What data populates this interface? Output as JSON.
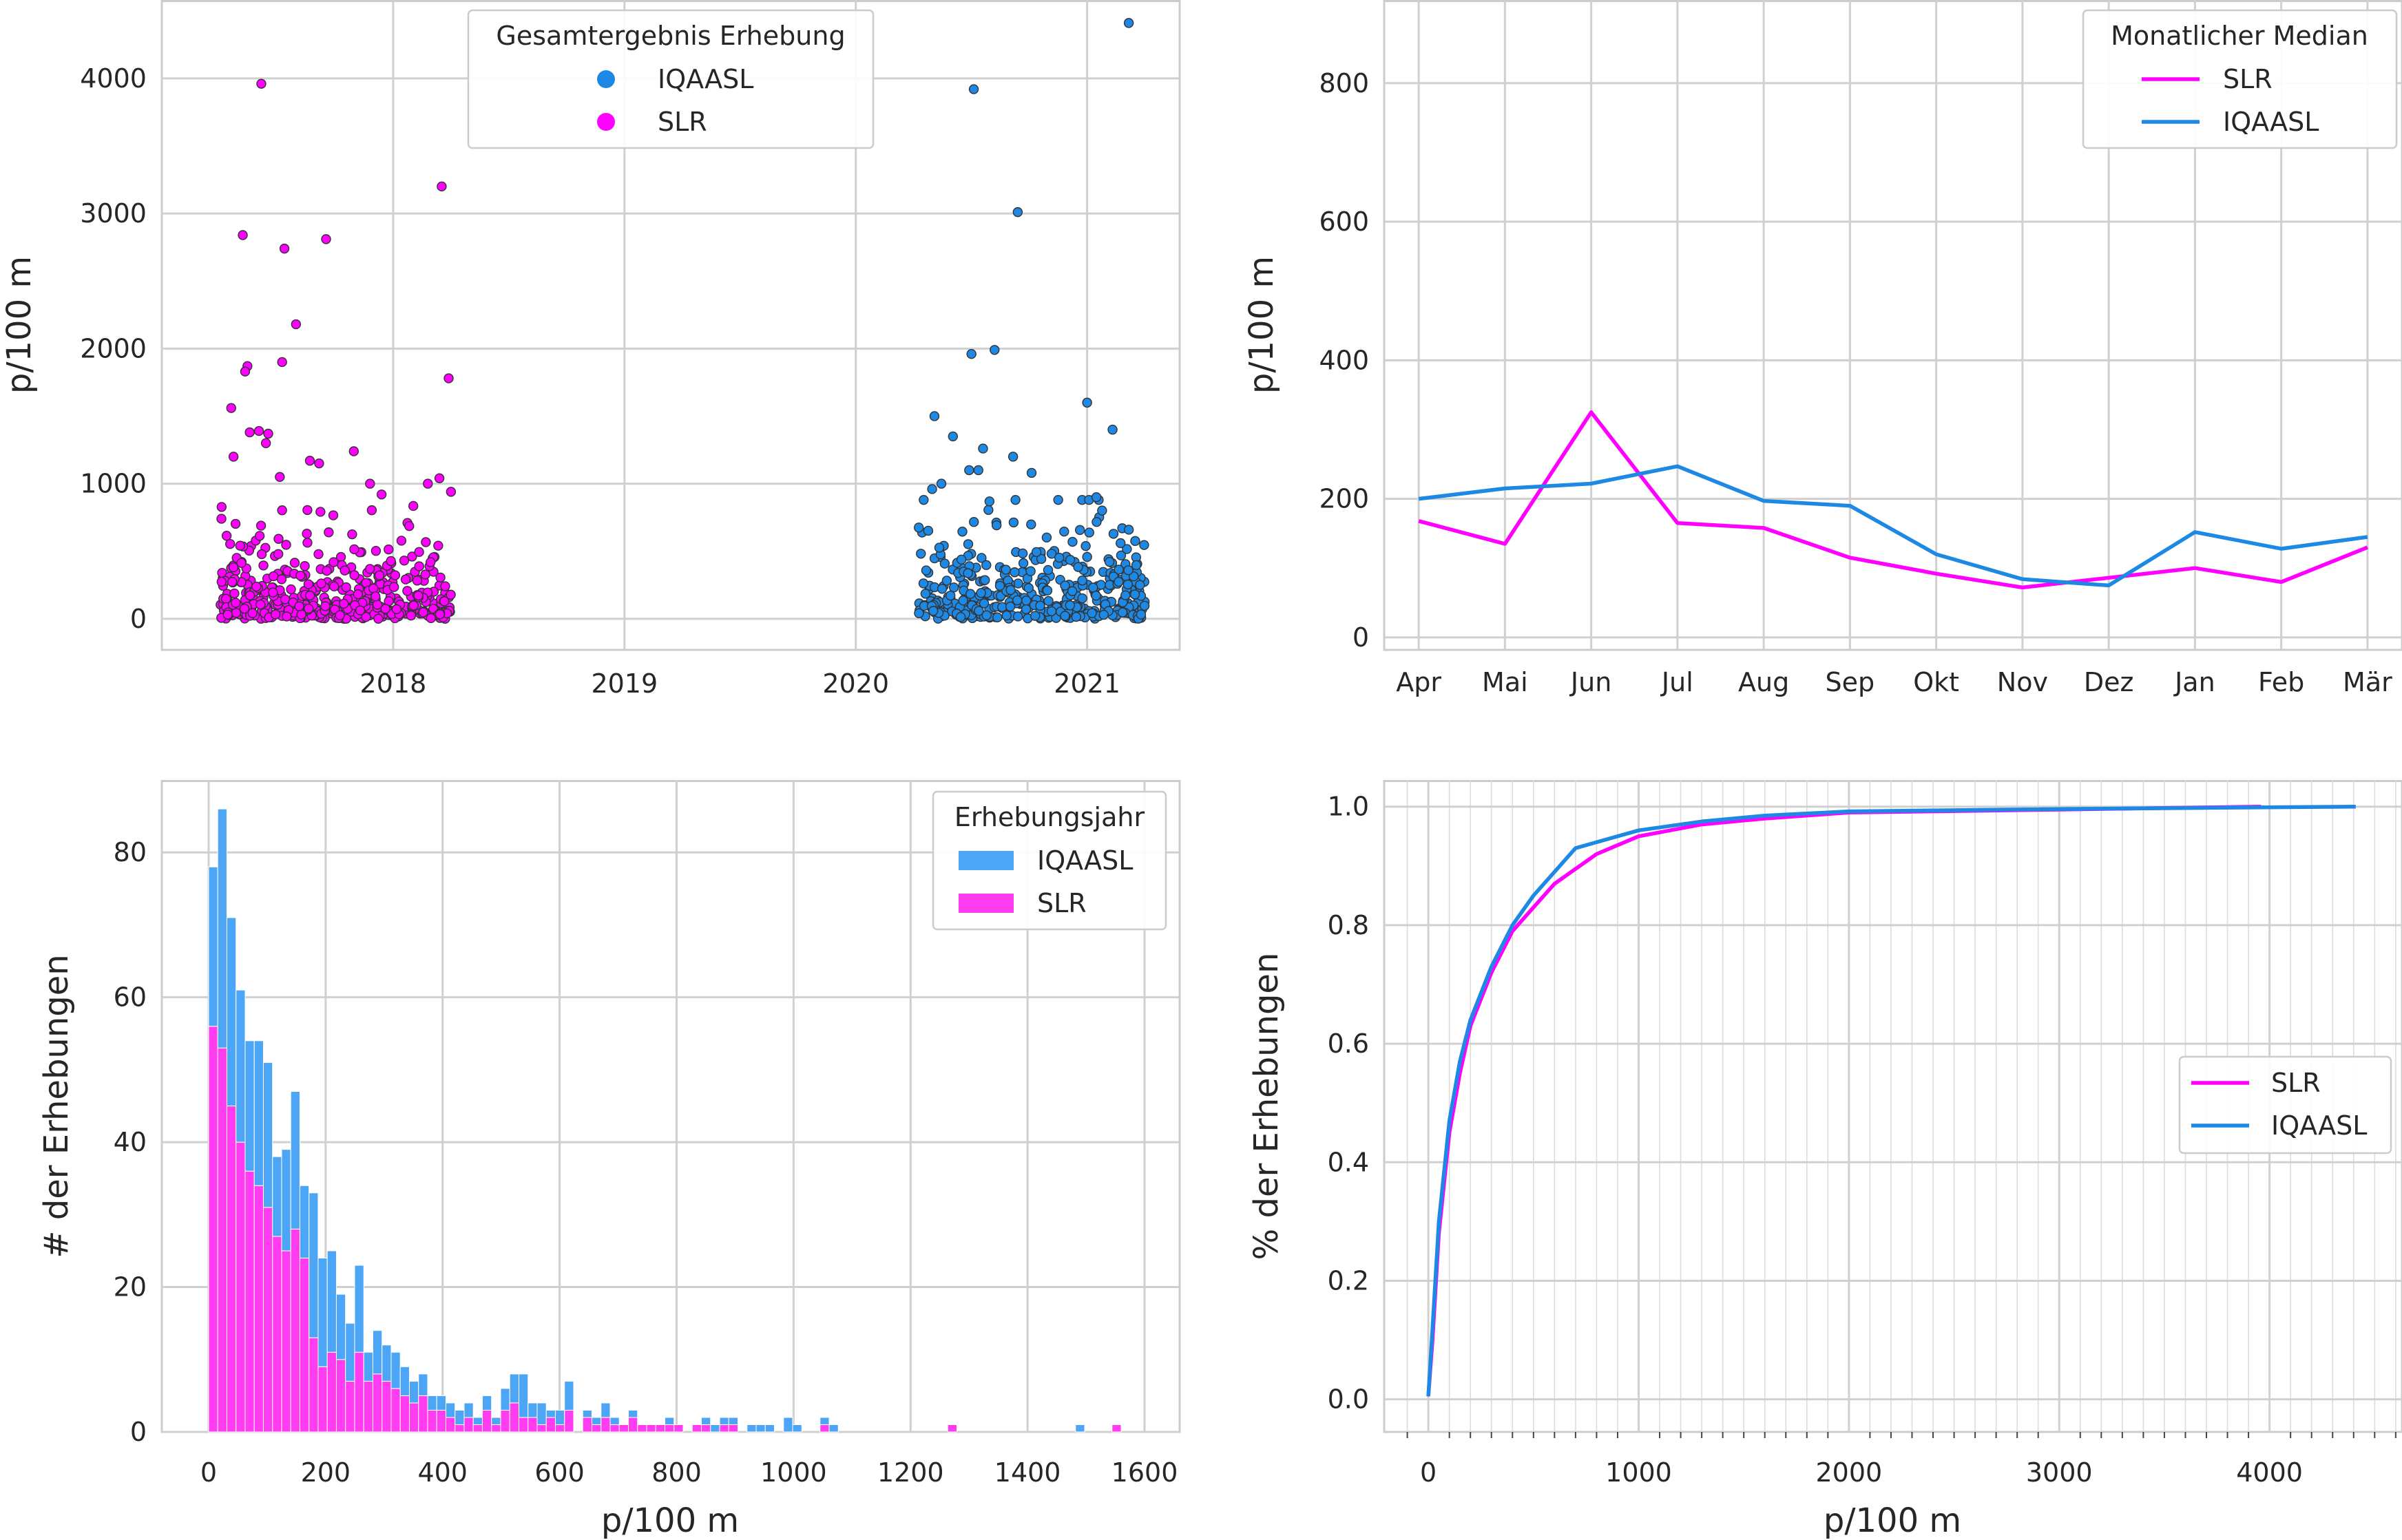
{
  "colors": {
    "slr": "#ff00ff",
    "iqaasl": "#1e88e5",
    "iqaasl_bar": "#4da6f5",
    "slr_bar": "#ff3cf0"
  },
  "chart_data": [
    {
      "id": "scatter",
      "type": "scatter",
      "ylabel": "p/100 m",
      "xlim": [
        2017.0,
        2021.4
      ],
      "ylim": [
        -230,
        4580
      ],
      "yticks": [
        0,
        1000,
        2000,
        3000,
        4000
      ],
      "xticks": [
        2018,
        2019,
        2020,
        2021
      ],
      "legend": {
        "title": "Gesamtergebnis Erhebung",
        "placement": "top-center",
        "entries": [
          "IQAASL",
          "SLR"
        ]
      },
      "series": [
        {
          "name": "SLR",
          "color": "#ff00ff",
          "outliers": [
            [
              2017.43,
              3960
            ],
            [
              2017.35,
              2840
            ],
            [
              2017.53,
              2740
            ],
            [
              2017.71,
              2810
            ],
            [
              2018.21,
              3200
            ],
            [
              2017.58,
              2180
            ],
            [
              2017.52,
              1900
            ],
            [
              2017.37,
              1870
            ],
            [
              2017.36,
              1830
            ],
            [
              2018.24,
              1780
            ],
            [
              2017.3,
              1560
            ],
            [
              2017.38,
              1380
            ],
            [
              2017.42,
              1390
            ],
            [
              2017.45,
              1300
            ],
            [
              2017.46,
              1370
            ],
            [
              2017.31,
              1200
            ],
            [
              2017.64,
              1170
            ],
            [
              2017.83,
              1240
            ],
            [
              2017.68,
              1150
            ],
            [
              2017.51,
              1050
            ],
            [
              2018.2,
              1040
            ],
            [
              2017.9,
              1000
            ],
            [
              2018.15,
              1000
            ],
            [
              2018.25,
              940
            ],
            [
              2017.95,
              920
            ]
          ],
          "cluster": {
            "x_range": [
              2017.25,
              2018.25
            ],
            "count": 450,
            "y_median": 140,
            "seed": 7
          }
        },
        {
          "name": "IQAASL",
          "color": "#1e88e5",
          "outliers": [
            [
              2021.18,
              4410
            ],
            [
              2020.51,
              3920
            ],
            [
              2020.7,
              3010
            ],
            [
              2020.6,
              1990
            ],
            [
              2020.5,
              1960
            ],
            [
              2021.0,
              1600
            ],
            [
              2020.34,
              1500
            ],
            [
              2021.11,
              1400
            ],
            [
              2020.42,
              1350
            ],
            [
              2020.68,
              1200
            ],
            [
              2020.55,
              1260
            ],
            [
              2020.49,
              1100
            ],
            [
              2020.53,
              1100
            ],
            [
              2020.76,
              1080
            ],
            [
              2020.33,
              960
            ],
            [
              2020.37,
              1000
            ],
            [
              2021.05,
              880
            ],
            [
              2021.04,
              900
            ]
          ],
          "cluster": {
            "x_range": [
              2020.27,
              2021.25
            ],
            "count": 420,
            "y_median": 170,
            "seed": 13
          }
        }
      ]
    },
    {
      "id": "median",
      "type": "line",
      "ylabel": "p/100 m",
      "categories": [
        "Apr",
        "Mai",
        "Jun",
        "Jul",
        "Aug",
        "Sep",
        "Okt",
        "Nov",
        "Dez",
        "Jan",
        "Feb",
        "Mär"
      ],
      "ylim": [
        -18,
        920
      ],
      "yticks": [
        0,
        200,
        400,
        600,
        800
      ],
      "legend": {
        "title": "Monatlicher Median",
        "placement": "top-right",
        "entries": [
          "SLR",
          "IQAASL"
        ]
      },
      "series": [
        {
          "name": "SLR",
          "color": "#ff00ff",
          "values": [
            168,
            135,
            325,
            165,
            158,
            115,
            92,
            72,
            86,
            100,
            80,
            130
          ]
        },
        {
          "name": "IQAASL",
          "color": "#1e88e5",
          "values": [
            200,
            215,
            222,
            247,
            197,
            190,
            120,
            84,
            75,
            152,
            128,
            145
          ]
        }
      ]
    },
    {
      "id": "hist",
      "type": "bar",
      "stacked": true,
      "xlabel": "p/100 m",
      "ylabel": "# der Erhebungen",
      "xlim": [
        -80,
        1660
      ],
      "ylim": [
        0,
        90
      ],
      "xticks": [
        0,
        200,
        400,
        600,
        800,
        1000,
        1200,
        1400,
        1600
      ],
      "yticks": [
        0,
        20,
        40,
        60,
        80
      ],
      "bin_start": 0,
      "bin_width": 15.6,
      "legend": {
        "title": "Erhebungsjahr",
        "placement": "top-right",
        "entries": [
          "IQAASL",
          "SLR"
        ]
      },
      "series": [
        {
          "name": "SLR",
          "color": "#ff3cf0",
          "values": [
            56,
            53,
            45,
            40,
            36,
            34,
            31,
            27,
            25,
            28,
            24,
            13,
            9,
            11,
            10,
            7,
            11,
            7,
            8,
            7,
            6,
            5,
            4,
            5,
            3,
            3,
            2,
            1,
            2,
            1,
            3,
            1,
            3,
            4,
            2,
            2,
            1,
            2,
            1,
            3,
            0,
            2,
            1,
            2,
            1,
            1,
            2,
            1,
            1,
            1,
            1,
            1,
            0,
            1,
            1,
            0,
            1,
            1,
            0,
            0,
            0,
            0,
            0,
            0,
            0,
            0,
            0,
            1,
            0,
            0,
            0,
            0,
            0,
            0,
            0,
            0,
            0,
            0,
            0,
            0,
            0,
            1,
            0,
            0,
            0,
            0,
            0,
            0,
            0,
            0,
            0,
            0,
            0,
            0,
            0,
            0,
            0,
            0,
            0,
            1
          ]
        },
        {
          "name": "IQAASL",
          "color": "#4da6f5",
          "values": [
            22,
            33,
            26,
            21,
            18,
            20,
            20,
            11,
            14,
            19,
            10,
            20,
            15,
            14,
            9,
            8,
            12,
            4,
            6,
            5,
            5,
            4,
            3,
            3,
            2,
            2,
            2,
            2,
            2,
            1,
            2,
            1,
            3,
            4,
            6,
            2,
            3,
            1,
            2,
            4,
            0,
            1,
            1,
            2,
            1,
            0,
            1,
            0,
            0,
            0,
            1,
            0,
            0,
            0,
            1,
            1,
            1,
            1,
            0,
            1,
            1,
            1,
            0,
            2,
            1,
            0,
            0,
            1,
            1,
            0,
            0,
            0,
            0,
            0,
            0,
            0,
            0,
            0,
            0,
            0,
            0,
            0,
            0,
            0,
            0,
            0,
            0,
            0,
            0,
            0,
            0,
            0,
            0,
            0,
            0,
            1,
            0,
            0,
            0,
            0
          ]
        }
      ]
    },
    {
      "id": "ecdf",
      "type": "line",
      "xlabel": "p/100 m",
      "ylabel": "% der Erhebungen",
      "xlim": [
        -210,
        4630
      ],
      "ylim": [
        -0.055,
        1.045
      ],
      "xticks": [
        0,
        1000,
        2000,
        3000,
        4000
      ],
      "yticks": [
        0.0,
        0.2,
        0.4,
        0.6,
        0.8,
        1.0
      ],
      "ytick_labels": [
        "0.0",
        "0.2",
        "0.4",
        "0.6",
        "0.8",
        "1.0"
      ],
      "minor_x_step": 100,
      "legend": {
        "placement": "center-right",
        "entries": [
          "SLR",
          "IQAASL"
        ]
      },
      "series": [
        {
          "name": "SLR",
          "color": "#ff00ff",
          "points": [
            [
              0,
              0.005
            ],
            [
              20,
              0.1
            ],
            [
              50,
              0.28
            ],
            [
              100,
              0.45
            ],
            [
              150,
              0.55
            ],
            [
              200,
              0.63
            ],
            [
              300,
              0.72
            ],
            [
              400,
              0.79
            ],
            [
              500,
              0.83
            ],
            [
              600,
              0.87
            ],
            [
              800,
              0.92
            ],
            [
              1000,
              0.95
            ],
            [
              1300,
              0.97
            ],
            [
              1600,
              0.98
            ],
            [
              2000,
              0.99
            ],
            [
              3000,
              0.995
            ],
            [
              3960,
              1.0
            ]
          ]
        },
        {
          "name": "IQAASL",
          "color": "#1e88e5",
          "points": [
            [
              0,
              0.005
            ],
            [
              20,
              0.12
            ],
            [
              50,
              0.3
            ],
            [
              100,
              0.47
            ],
            [
              150,
              0.57
            ],
            [
              200,
              0.64
            ],
            [
              300,
              0.73
            ],
            [
              400,
              0.8
            ],
            [
              500,
              0.85
            ],
            [
              600,
              0.89
            ],
            [
              700,
              0.93
            ],
            [
              800,
              0.94
            ],
            [
              1000,
              0.96
            ],
            [
              1300,
              0.975
            ],
            [
              1600,
              0.985
            ],
            [
              2000,
              0.992
            ],
            [
              3000,
              0.996
            ],
            [
              4410,
              1.0
            ]
          ]
        }
      ]
    }
  ]
}
